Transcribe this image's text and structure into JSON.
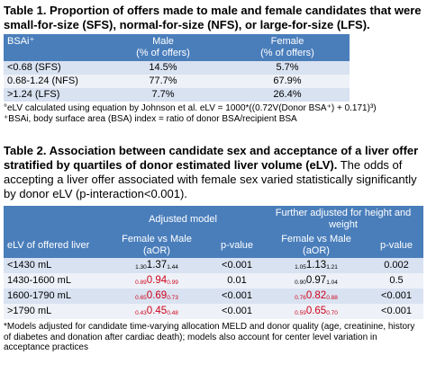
{
  "table1": {
    "title": "Table 1. Proportion of offers made to male and female candidates that were small-for-size (SFS), normal-for-size (NFS), or large-for-size (LFS).",
    "header": {
      "col1": "BSAi⁺",
      "col2_line1": "Male",
      "col2_line2": "(% of offers)",
      "col3_line1": "Female",
      "col3_line2": "(% of offers)"
    },
    "rows": [
      {
        "label": "<0.68 (SFS)",
        "male": "14.5%",
        "female": "5.7%"
      },
      {
        "label": "0.68-1.24 (NFS)",
        "male": "77.7%",
        "female": "67.9%"
      },
      {
        "label": ">1.24 (LFS)",
        "male": "7.7%",
        "female": "26.4%"
      }
    ],
    "notes": [
      "°eLV calculated using equation by Johnson et al. eLV = 1000*((0.72V(Donor BSA⁺) + 0.171)³)",
      "⁺BSAi, body surface area (BSA) index = ratio of donor BSA/recipient BSA"
    ]
  },
  "table2": {
    "title_bold": "Table 2. Association between candidate sex and acceptance of a liver offer stratified by quartiles of donor estimated liver volume (eLV).",
    "title_normal": " The odds of accepting a liver offer associated with female sex varied statistically significantly by donor eLV (p-interaction<0.001).",
    "header": {
      "group1": "Adjusted model",
      "group2": "Further adjusted for height and weight",
      "col_label": "eLV of offered liver",
      "or_line1": "Female vs Male",
      "or_line2": "(aOR)",
      "pval": "p-value"
    },
    "rows": [
      {
        "label": "<1430 mL",
        "m1": {
          "lo": "1.30",
          "est": "1.37",
          "hi": "1.44",
          "sig_red": false
        },
        "p1": "<0.001",
        "m2": {
          "lo": "1.05",
          "est": "1.13",
          "hi": "1.21",
          "sig_red": false
        },
        "p2": "0.002"
      },
      {
        "label": "1430-1600 mL",
        "m1": {
          "lo": "0.89",
          "est": "0.94",
          "hi": "0.99",
          "sig_red": true
        },
        "p1": "0.01",
        "m2": {
          "lo": "0.90",
          "est": "0.97",
          "hi": "1.04",
          "sig_red": false
        },
        "p2": "0.5"
      },
      {
        "label": "1600-1790 mL",
        "m1": {
          "lo": "0.65",
          "est": "0.69",
          "hi": "0.73",
          "sig_red": true
        },
        "p1": "<0.001",
        "m2": {
          "lo": "0.76",
          "est": "0.82",
          "hi": "0.88",
          "sig_red": true
        },
        "p2": "<0.001"
      },
      {
        "label": ">1790 mL",
        "m1": {
          "lo": "0.43",
          "est": "0.45",
          "hi": "0.48",
          "sig_red": true
        },
        "p1": "<0.001",
        "m2": {
          "lo": "0.59",
          "est": "0.65",
          "hi": "0.70",
          "sig_red": true
        },
        "p2": "<0.001"
      }
    ],
    "note": "*Models adjusted for candidate time-varying allocation MELD and donor quality (age, creatinine, history of diabetes and donation after cardiac death); models also account for center level variation in acceptance practices"
  },
  "colors": {
    "header_blue": "#4a7ebb",
    "row_dark": "#d9e2f1",
    "row_light": "#eef2f8",
    "sig_red": "#d0021b"
  }
}
